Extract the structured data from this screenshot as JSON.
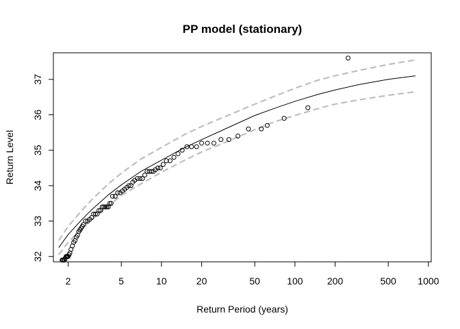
{
  "chart_data": {
    "type": "line",
    "title": "PP model (stationary)",
    "xlabel": "Return Period (years)",
    "ylabel": "Return Level",
    "x_scale": "log",
    "xlim": [
      1.55,
      1050
    ],
    "ylim": [
      31.85,
      37.75
    ],
    "x_ticks": [
      2,
      5,
      10,
      20,
      50,
      100,
      200,
      500,
      1000
    ],
    "x_tick_labels": [
      "2",
      "5",
      "10",
      "20",
      "50",
      "100",
      "200",
      "500",
      "1000"
    ],
    "y_ticks": [
      32,
      33,
      34,
      35,
      36,
      37
    ],
    "y_tick_labels": [
      "32",
      "33",
      "34",
      "35",
      "36",
      "37"
    ],
    "grid": false,
    "series": [
      {
        "key": "fit",
        "style": "solid",
        "color": "#000000",
        "x": [
          1.7,
          2,
          2.5,
          3,
          4,
          5,
          7,
          10,
          15,
          20,
          30,
          50,
          70,
          100,
          150,
          200,
          300,
          500,
          800
        ],
        "y": [
          32.25,
          32.62,
          33.02,
          33.32,
          33.74,
          34.02,
          34.4,
          34.72,
          35.08,
          35.3,
          35.6,
          35.98,
          36.18,
          36.38,
          36.58,
          36.7,
          36.85,
          37.0,
          37.1
        ]
      },
      {
        "key": "upper",
        "style": "dashed",
        "color": "#bebebe",
        "x": [
          1.7,
          2,
          2.5,
          3,
          4,
          5,
          7,
          10,
          15,
          20,
          30,
          50,
          70,
          100,
          150,
          200,
          300,
          500,
          800
        ],
        "y": [
          32.45,
          32.85,
          33.28,
          33.6,
          34.05,
          34.35,
          34.75,
          35.08,
          35.45,
          35.67,
          35.95,
          36.3,
          36.52,
          36.75,
          36.98,
          37.1,
          37.25,
          37.42,
          37.55
        ]
      },
      {
        "key": "lower",
        "style": "dashed",
        "color": "#bebebe",
        "x": [
          1.7,
          2,
          2.5,
          3,
          4,
          5,
          7,
          10,
          15,
          20,
          30,
          50,
          70,
          100,
          150,
          200,
          300,
          500,
          800
        ],
        "y": [
          32.05,
          32.4,
          32.77,
          33.04,
          33.43,
          33.72,
          34.05,
          34.38,
          34.72,
          34.95,
          35.22,
          35.58,
          35.8,
          35.98,
          36.18,
          36.3,
          36.42,
          36.55,
          36.65
        ]
      },
      {
        "key": "observed",
        "style": "points",
        "color": "#000000",
        "x": [
          1.8,
          1.82,
          1.85,
          1.88,
          1.9,
          1.93,
          1.95,
          1.98,
          2.0,
          2.03,
          2.06,
          2.1,
          2.15,
          2.2,
          2.25,
          2.3,
          2.35,
          2.4,
          2.45,
          2.5,
          2.55,
          2.6,
          2.7,
          2.8,
          2.9,
          3.0,
          3.1,
          3.2,
          3.3,
          3.4,
          3.5,
          3.6,
          3.7,
          3.8,
          3.9,
          4.0,
          4.1,
          4.2,
          4.3,
          4.5,
          4.7,
          4.9,
          5.1,
          5.3,
          5.5,
          5.7,
          5.9,
          6.1,
          6.3,
          6.6,
          6.9,
          7.2,
          7.5,
          7.8,
          8.1,
          8.4,
          8.7,
          9.0,
          9.4,
          9.8,
          10.3,
          10.9,
          11.6,
          12.4,
          13.3,
          14.3,
          15.5,
          16.8,
          18.3,
          20.0,
          22.1,
          24.7,
          27.9,
          32.0,
          37.4,
          44.8,
          56.0,
          62.0,
          83.0,
          125.0,
          250.0
        ],
        "y": [
          31.9,
          31.9,
          31.9,
          31.9,
          31.95,
          32.0,
          32.0,
          32.0,
          32.0,
          32.05,
          32.1,
          32.2,
          32.3,
          32.4,
          32.45,
          32.55,
          32.6,
          32.7,
          32.75,
          32.8,
          32.85,
          32.9,
          33.0,
          33.0,
          33.05,
          33.1,
          33.2,
          33.2,
          33.2,
          33.3,
          33.3,
          33.4,
          33.4,
          33.4,
          33.4,
          33.4,
          33.5,
          33.5,
          33.7,
          33.7,
          33.8,
          33.8,
          33.85,
          33.9,
          33.95,
          34.0,
          34.0,
          34.1,
          34.15,
          34.2,
          34.2,
          34.2,
          34.3,
          34.4,
          34.4,
          34.4,
          34.4,
          34.45,
          34.5,
          34.5,
          34.6,
          34.7,
          34.7,
          34.8,
          34.9,
          35.0,
          35.1,
          35.1,
          35.1,
          35.2,
          35.2,
          35.2,
          35.3,
          35.3,
          35.4,
          35.6,
          35.6,
          35.7,
          35.9,
          36.2,
          37.6
        ]
      }
    ]
  }
}
